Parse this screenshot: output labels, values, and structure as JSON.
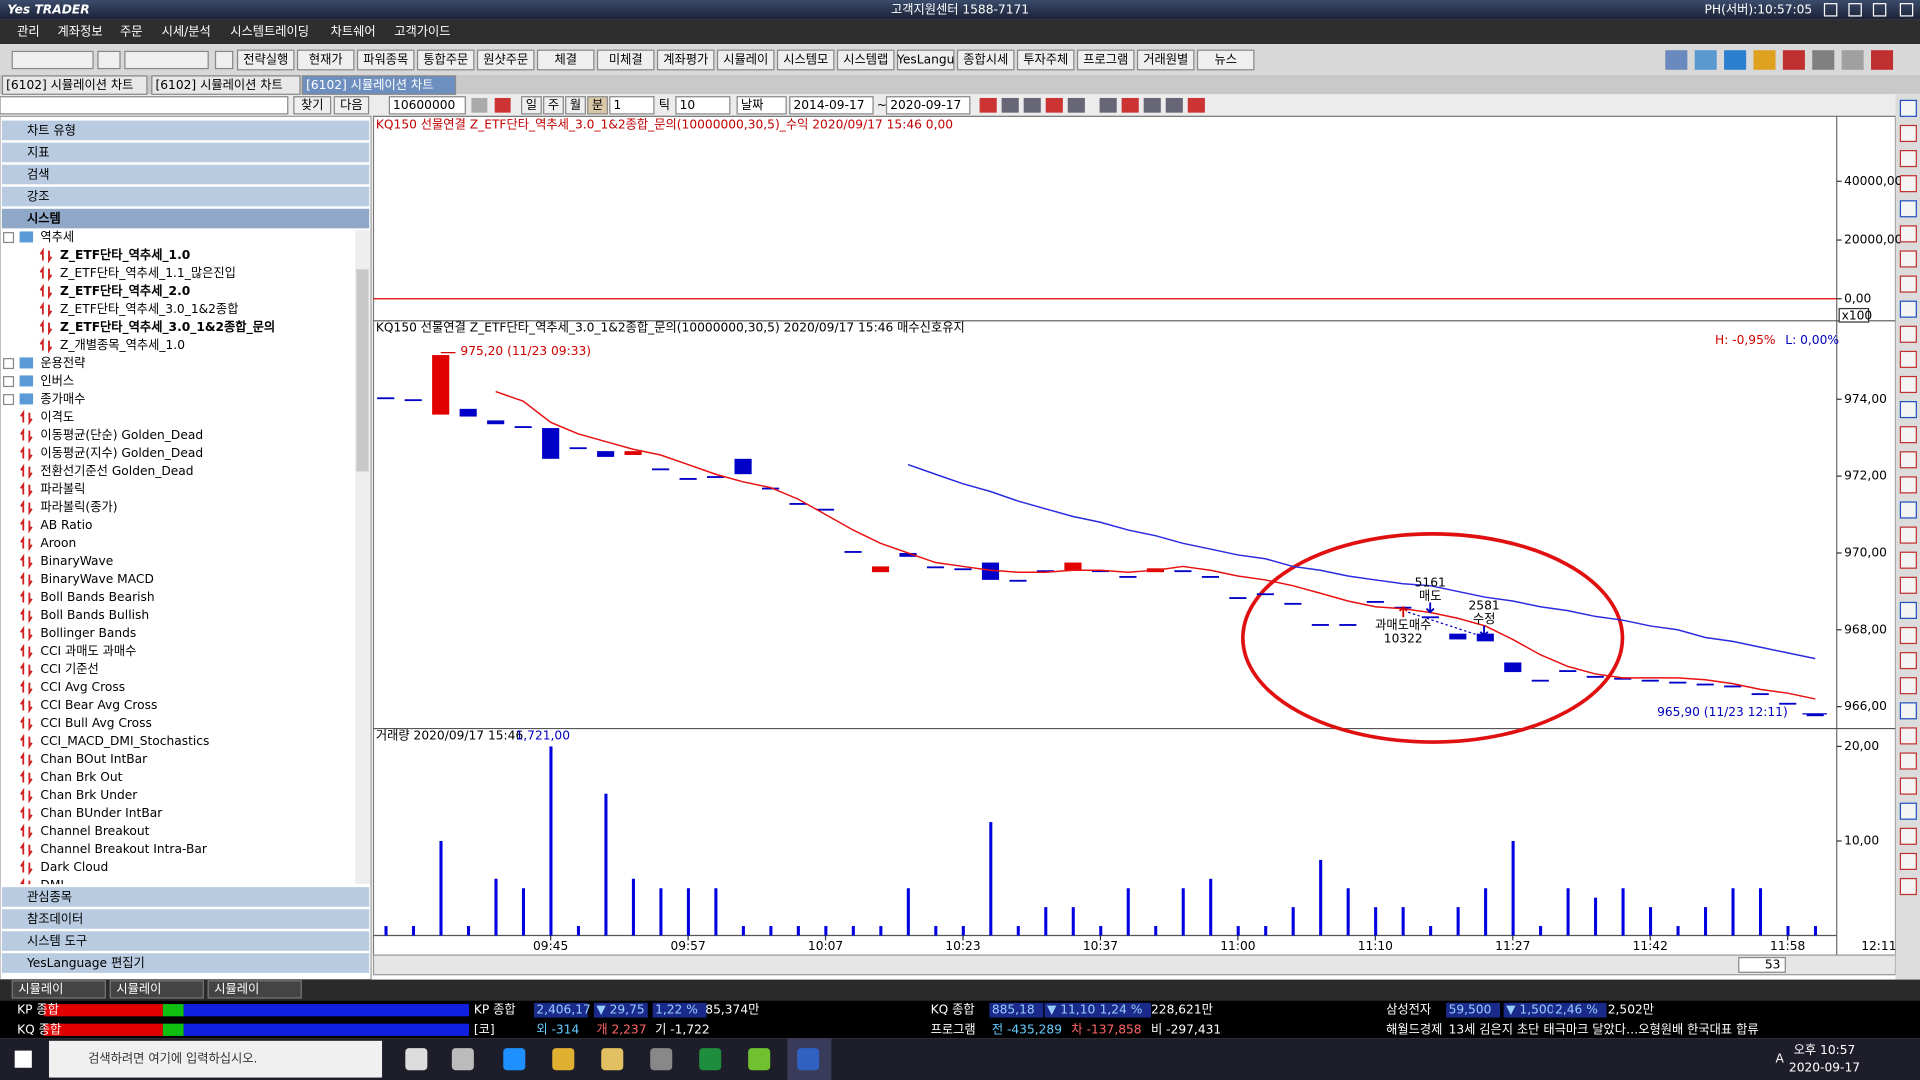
{
  "title_bar": {
    "logo": "Yes TRADER",
    "center": "고객지원센터 1588-7171",
    "clock": "PH(서버):10:57:05"
  },
  "menu": [
    "관리",
    "계좌정보",
    "주문",
    "시세/분석",
    "시스템트레이딩",
    "차트쉐어",
    "고객가이드"
  ],
  "toolbar": [
    "전략실행",
    "현재가",
    "파워종목",
    "통합주문",
    "원샷주문",
    "체결",
    "미체결",
    "계좌평가",
    "시뮬레이",
    "시스템모",
    "시스템랩",
    "YesLangu",
    "종합시세",
    "투자주체",
    "프로그램",
    "거래원별",
    "뉴스"
  ],
  "tabs": [
    "[6102] 시뮬레이션 차트",
    "[6102] 시뮬레이션 차트",
    "[6102] 시뮬레이션 차트"
  ],
  "chart_toolbar": {
    "code": "10600000",
    "periods": [
      "일",
      "주",
      "월",
      "분"
    ],
    "interval": "1",
    "tick": "틱",
    "tick_count": "10",
    "date_mode": "날짜",
    "start": "2014-09-17",
    "tilde": "~",
    "end": "2020-09-17"
  },
  "sidebar": {
    "find": "찾기",
    "next": "다음",
    "sections": [
      "차트 유형",
      "지표",
      "검색",
      "강조",
      "시스템"
    ],
    "root": "역추세",
    "children": [
      {
        "label": "Z_ETF단타_역추세_1.0",
        "bold": true
      },
      {
        "label": "Z_ETF단타_역추세_1.1_많은진입",
        "bold": false
      },
      {
        "label": "Z_ETF단타_역추세_2.0",
        "bold": true
      },
      {
        "label": "Z_ETF단타_역추세_3.0_1&2종합",
        "bold": false
      },
      {
        "label": "Z_ETF단타_역추세_3.0_1&2종합_문의",
        "bold": true
      },
      {
        "label": "Z_개별종목_역추세_1.0",
        "bold": false
      }
    ],
    "folders": [
      "운용전략",
      "인버스",
      "종가매수"
    ],
    "systems": [
      "이격도",
      "이동평균(단순) Golden_Dead",
      "이동평균(지수) Golden_Dead",
      "전환선기준선 Golden_Dead",
      "파라볼릭",
      "파라볼릭(종가)",
      "AB Ratio",
      "Aroon",
      "BinaryWave",
      "BinaryWave MACD",
      "Boll Bands Bearish",
      "Boll Bands Bullish",
      "Bollinger Bands",
      "CCI 과매도 과매수",
      "CCI 기준선",
      "CCI Avg Cross",
      "CCI Bear Avg Cross",
      "CCI Bull Avg Cross",
      "CCI_MACD_DMI_Stochastics",
      "Chan BOut IntBar",
      "Chan Brk Out",
      "Chan Brk Under",
      "Chan BUnder IntBar",
      "Channel Breakout",
      "Channel Breakout Intra-Bar",
      "Dark Cloud",
      "DMI"
    ],
    "bottom_sections": [
      "관심종목",
      "참조데이터",
      "시스템 도구",
      "YesLanguage 편집기"
    ]
  },
  "chart_data": {
    "type": "candlestick",
    "header": "KQ150 선물연결 Z_ETF단타_역추세_3.0_1&2종합_문의(10000000,30,5)  2020/09/17 15:46 매수신호유지",
    "categories": [
      null,
      null,
      null,
      null,
      null,
      null,
      "09:45",
      null,
      null,
      null,
      null,
      "09:57",
      null,
      null,
      null,
      null,
      "10:07",
      null,
      null,
      null,
      null,
      "10:23",
      null,
      null,
      null,
      null,
      "10:37",
      null,
      null,
      null,
      null,
      "11:00",
      null,
      null,
      null,
      null,
      "11:10",
      null,
      null,
      null,
      null,
      "11:27",
      null,
      null,
      null,
      null,
      "11:42",
      null,
      null,
      null,
      null,
      "11:58",
      null
    ],
    "open": [
      974.05,
      974.0,
      973.6,
      973.75,
      973.45,
      973.3,
      973.25,
      972.75,
      972.65,
      972.55,
      972.2,
      971.95,
      972.0,
      972.45,
      971.7,
      971.3,
      971.15,
      970.05,
      969.5,
      970.0,
      969.65,
      969.6,
      969.75,
      969.3,
      969.55,
      969.55,
      969.55,
      969.4,
      969.5,
      969.55,
      969.4,
      968.85,
      968.95,
      968.7,
      968.15,
      968.15,
      968.75,
      968.6,
      968.35,
      967.9,
      967.9,
      967.15,
      966.7,
      966.95,
      966.8,
      966.75,
      966.7,
      966.65,
      966.6,
      966.55,
      966.35,
      966.1,
      965.8
    ],
    "close": [
      974.05,
      974.0,
      975.15,
      973.55,
      973.35,
      973.3,
      972.45,
      972.75,
      972.5,
      972.65,
      972.2,
      971.95,
      972.0,
      972.05,
      971.7,
      971.3,
      971.15,
      970.05,
      969.65,
      969.9,
      969.65,
      969.6,
      969.3,
      969.3,
      969.55,
      969.75,
      969.55,
      969.4,
      969.6,
      969.55,
      969.4,
      968.85,
      968.95,
      968.7,
      968.15,
      968.15,
      968.75,
      968.6,
      968.35,
      967.75,
      967.7,
      966.9,
      966.7,
      966.95,
      966.8,
      966.75,
      966.7,
      966.65,
      966.6,
      966.55,
      966.35,
      966.1,
      965.8
    ],
    "up_color": "#e00000",
    "down_color": "#0000c8",
    "lines": [
      {
        "color": "#e81010",
        "values": [
          null,
          null,
          null,
          null,
          974.2,
          973.95,
          973.4,
          973.1,
          972.9,
          972.7,
          972.55,
          972.3,
          972.05,
          971.85,
          971.7,
          971.4,
          971.0,
          970.6,
          970.25,
          970.0,
          969.75,
          969.65,
          969.55,
          969.5,
          969.5,
          969.55,
          969.55,
          969.5,
          969.55,
          969.65,
          969.55,
          969.4,
          969.3,
          969.15,
          968.95,
          968.75,
          968.6,
          968.55,
          968.45,
          968.3,
          968.1,
          967.75,
          967.35,
          967.05,
          966.85,
          966.75,
          966.75,
          966.75,
          966.7,
          966.6,
          966.45,
          966.35,
          966.2
        ]
      },
      {
        "color": "#2a2ae0",
        "values": [
          null,
          null,
          null,
          null,
          null,
          null,
          null,
          null,
          null,
          null,
          null,
          null,
          null,
          null,
          null,
          null,
          null,
          null,
          null,
          972.3,
          972.05,
          971.8,
          971.6,
          971.35,
          971.15,
          970.95,
          970.8,
          970.6,
          970.45,
          970.25,
          970.1,
          969.95,
          969.85,
          969.65,
          969.55,
          969.4,
          969.3,
          969.2,
          969.15,
          969.0,
          968.85,
          968.75,
          968.6,
          968.5,
          968.35,
          968.25,
          968.1,
          968.0,
          967.8,
          967.7,
          967.55,
          967.4,
          967.25
        ]
      }
    ],
    "ylim": [
      965.43,
      975.85
    ],
    "yticks": [
      {
        "value": 966,
        "label": "966,00"
      },
      {
        "value": 968,
        "label": "968,00"
      },
      {
        "value": 970,
        "label": "970,00"
      },
      {
        "value": 972,
        "label": "972,00"
      },
      {
        "value": 974,
        "label": "974,00"
      }
    ],
    "high_label": "975,20 (11/23 09:33)",
    "low_label": "965,90 (11/23 12:11)",
    "h_pct": "H: -0,95%",
    "l_pct": "L: 0,00%",
    "scale_unit": "x100",
    "signals": [
      "5161",
      "매도",
      "2581",
      "수정",
      "과매도매수",
      "10322"
    ],
    "time_end": "12:11",
    "page_count": "53",
    "profit": {
      "header": "KQ150 선물연결 Z_ETF단타_역추세_3.0_1&2종합_문의(10000000,30,5)_수익 2020/09/17 15:46 0,00",
      "value": 0,
      "color": "#e00000",
      "ylim": [
        -7500,
        61700
      ],
      "yticks": [
        {
          "value": 0,
          "label": "0,00"
        },
        {
          "value": 20000,
          "label": "20000,00"
        },
        {
          "value": 40000,
          "label": "40000,00"
        }
      ]
    },
    "volume": {
      "header": "거래량 2020/09/17 15:46",
      "last": "1,721,00",
      "color": "#0000e0",
      "values": [
        1,
        1,
        10,
        1,
        6,
        5,
        20,
        1,
        15,
        6,
        5,
        5,
        5,
        1,
        1,
        1,
        1,
        1,
        1,
        5,
        1,
        1,
        12,
        1,
        3,
        3,
        1,
        5,
        1,
        5,
        6,
        1,
        1,
        3,
        8,
        5,
        3,
        3,
        1,
        3,
        5,
        10,
        1,
        5,
        4,
        5,
        3,
        1,
        3,
        5,
        5,
        1,
        1
      ],
      "ylim": [
        0,
        21.5
      ],
      "yticks": [
        {
          "value": 10,
          "label": "10,00"
        },
        {
          "value": 20,
          "label": "20,00"
        }
      ]
    }
  },
  "bottom_tabs": [
    "시뮬레이",
    "시뮬레이",
    "시뮬레이"
  ],
  "ticker": {
    "row1": [
      "KP 종합",
      "KP 종합",
      "2,406,17",
      "▼ 29,75",
      "1,22 %",
      "85,374만",
      "KQ 종합",
      "885,18",
      "▼ 11,10",
      "1,24 %",
      "228,621만",
      "삼성전자",
      "59,500",
      "▼ 1,500",
      "2,46 %",
      "2,502만"
    ],
    "row2": [
      "KQ 종합",
      "[코]",
      "외 -314",
      "개 2,237",
      "기 -1,722",
      "프로그램",
      "전 -435,289",
      "차 -137,858",
      "비 -297,431",
      "해월드경제",
      "13세 김은지 초단 태극마크 달았다…오형원배 한국대표 합류"
    ]
  },
  "taskbar": {
    "search": "검색하려면 여기에 입력하십시오.",
    "ime": "A",
    "time": "오후 10:57",
    "date": "2020-09-17"
  }
}
